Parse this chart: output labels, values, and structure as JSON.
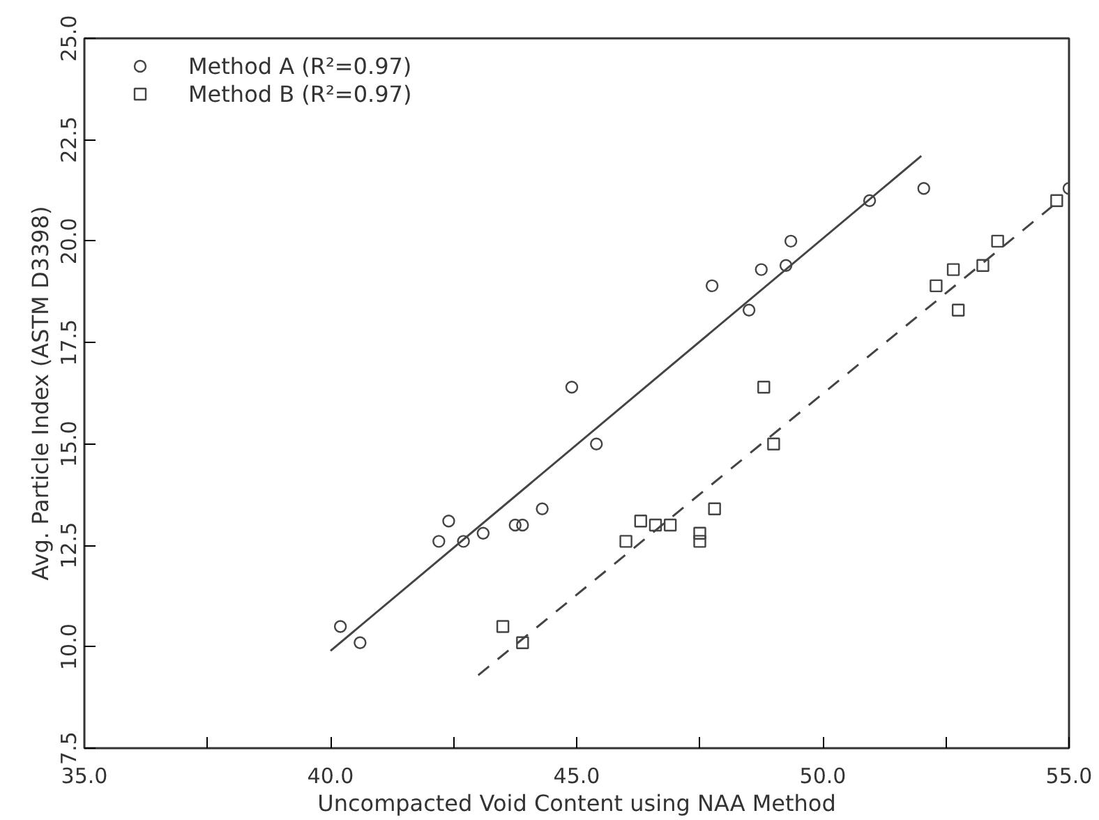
{
  "chart_data": {
    "type": "scatter",
    "xlabel": "Uncompacted Void Content using NAA Method",
    "ylabel": "Avg. Particle Index (ASTM D3398)",
    "xlim": [
      35,
      55
    ],
    "ylim": [
      7.5,
      25
    ],
    "xticks": [
      {
        "value": 35,
        "label": "35.0"
      },
      {
        "value": 37.5,
        "label": null
      },
      {
        "value": 40,
        "label": "40.0"
      },
      {
        "value": 42.5,
        "label": null
      },
      {
        "value": 45,
        "label": "45.0"
      },
      {
        "value": 47.5,
        "label": null
      },
      {
        "value": 50,
        "label": "50.0"
      },
      {
        "value": 52.5,
        "label": null
      },
      {
        "value": 55,
        "label": "55.0"
      }
    ],
    "yticks": [
      {
        "value": 7.5,
        "label": "7.5"
      },
      {
        "value": 10,
        "label": "10.0"
      },
      {
        "value": 12.5,
        "label": "12.5"
      },
      {
        "value": 15,
        "label": "15.0"
      },
      {
        "value": 17.5,
        "label": "17.5"
      },
      {
        "value": 20,
        "label": "20.0"
      },
      {
        "value": 22.5,
        "label": "22.5"
      },
      {
        "value": 25,
        "label": "25.0"
      }
    ],
    "grid": false,
    "legend": "top left",
    "series": [
      {
        "name": "Method A (R²=0.97)",
        "color": "#444444",
        "marker": "circle",
        "line_style": "solid",
        "x": [
          40.2,
          40.6,
          42.2,
          42.4,
          42.7,
          43.1,
          43.75,
          43.9,
          44.3,
          44.9,
          45.4,
          47.75,
          48.5,
          48.75,
          49.25,
          49.35,
          50.95,
          52.05,
          55.0
        ],
        "values": [
          10.5,
          10.1,
          12.6,
          13.1,
          12.6,
          12.8,
          13.0,
          13.0,
          13.4,
          16.4,
          15.0,
          18.9,
          18.3,
          19.3,
          19.4,
          20.0,
          21.0,
          21.3,
          21.3
        ]
      },
      {
        "name": "Method B (R²=0.97)",
        "color": "#444444",
        "marker": "square",
        "line_style": "dashed",
        "x": [
          43.5,
          43.9,
          46.0,
          46.3,
          46.6,
          46.9,
          47.5,
          47.5,
          47.8,
          48.8,
          49.0,
          52.3,
          52.65,
          52.75,
          53.25,
          53.55,
          54.75
        ],
        "values": [
          10.5,
          10.1,
          12.6,
          13.1,
          13.0,
          13.0,
          12.8,
          12.6,
          13.4,
          16.4,
          15.0,
          18.9,
          19.3,
          18.3,
          19.4,
          20.0,
          21.0
        ]
      },
      {
        "type": "line",
        "color": "#444444",
        "line_style": "solid",
        "x": [
          40.0,
          52.0
        ],
        "values": [
          9.9,
          22.1
        ]
      },
      {
        "type": "line",
        "color": "#444444",
        "line_style": "dashed",
        "x": [
          43.0,
          54.7
        ],
        "values": [
          9.3,
          20.9
        ]
      }
    ]
  }
}
